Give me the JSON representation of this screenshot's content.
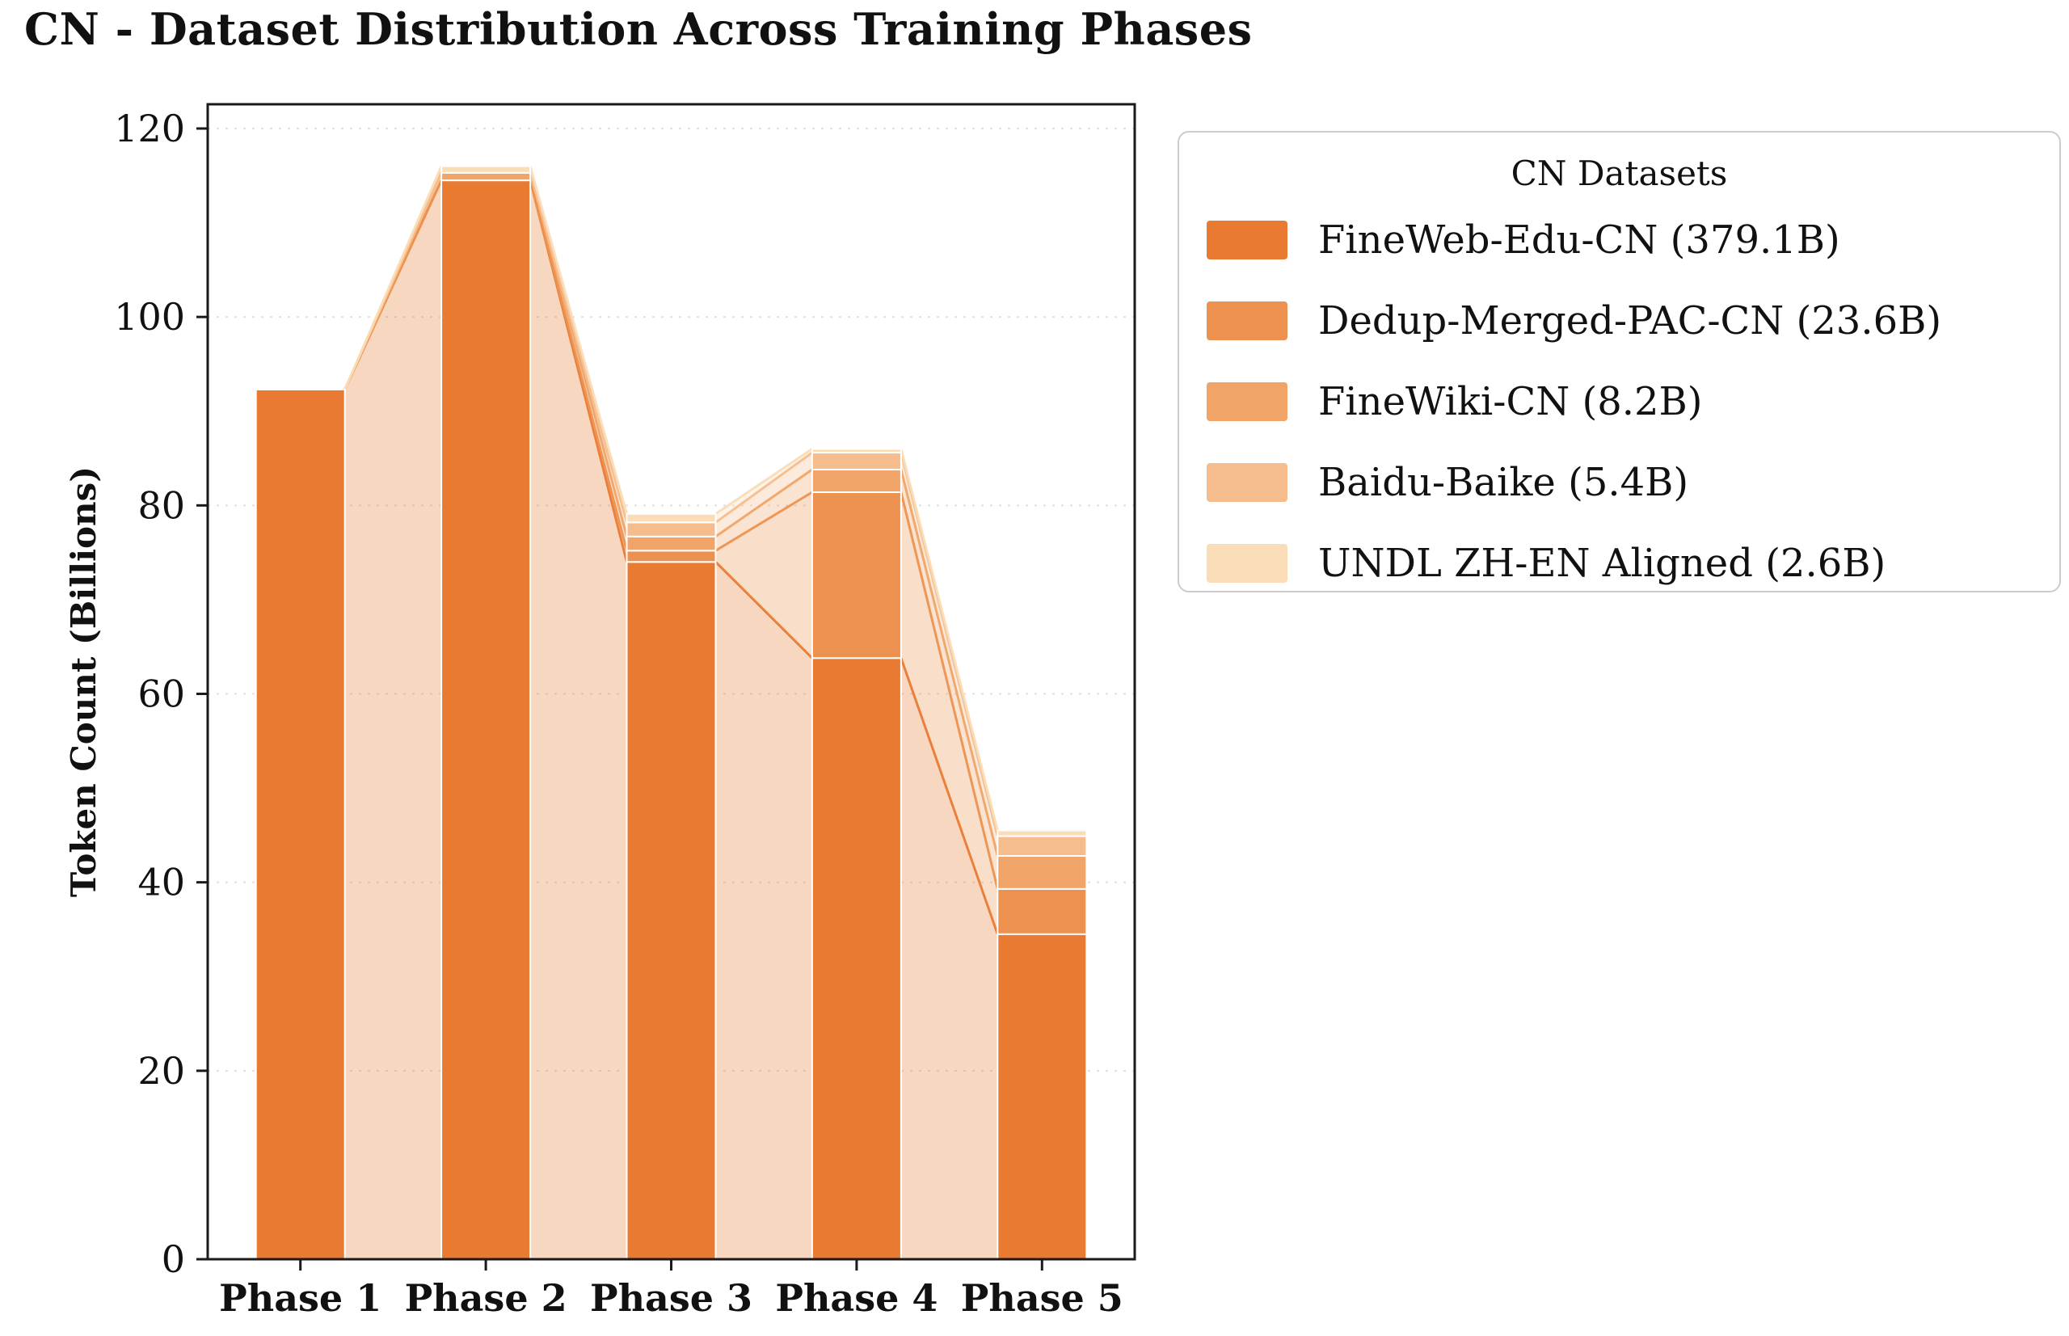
{
  "chart_data": {
    "type": "bar",
    "stacked": true,
    "flow_bands": true,
    "title": "CN - Dataset Distribution Across Training Phases",
    "ylabel": "Token Count (Billions)",
    "xlabel": "",
    "ylim": [
      0,
      120
    ],
    "yticks": [
      0,
      20,
      40,
      60,
      80,
      100,
      120
    ],
    "grid": "horizontal-dashed",
    "legend_title": "CN Datasets",
    "legend_position": "upper right outside",
    "categories": [
      "Phase 1",
      "Phase 2",
      "Phase 3",
      "Phase 4",
      "Phase 5"
    ],
    "series": [
      {
        "name": "FineWeb-Edu-CN (379.1B)",
        "color": "#e97a32",
        "values": [
          92.3,
          114.5,
          74.0,
          63.8,
          34.5
        ]
      },
      {
        "name": "Dedup-Merged-PAC-CN (23.6B)",
        "color": "#ec914f",
        "values": [
          0,
          0,
          1.2,
          17.6,
          4.8
        ]
      },
      {
        "name": "FineWiki-CN (8.2B)",
        "color": "#f0a467",
        "values": [
          0,
          0.8,
          1.5,
          2.4,
          3.5
        ]
      },
      {
        "name": "Baidu-Baike (5.4B)",
        "color": "#f5bd8d",
        "values": [
          0,
          0,
          1.5,
          1.8,
          2.1
        ]
      },
      {
        "name": "UNDL ZH-EN Aligned (2.6B)",
        "color": "#fadcb6",
        "values": [
          0,
          0.7,
          0.9,
          0.4,
          0.6
        ]
      }
    ],
    "phase_totals": [
      92.3,
      116.0,
      79.1,
      86.0,
      45.5
    ],
    "colors": {
      "axis": "#1a1a1a",
      "grid": "#e0e0e0",
      "background": "#ffffff"
    }
  }
}
